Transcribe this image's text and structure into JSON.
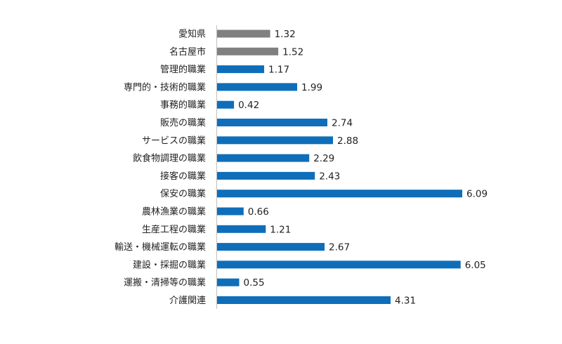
{
  "chart_data": {
    "type": "bar",
    "orientation": "horizontal",
    "title": "",
    "xlabel": "",
    "ylabel": "",
    "grid": false,
    "legend": "none",
    "xlim": [
      0,
      6.2
    ],
    "categories": [
      "愛知県",
      "名古屋市",
      "管理的職業",
      "専門的・技術的職業",
      "事務的職業",
      "販売の職業",
      "サービスの職業",
      "飲食物調理の職業",
      "接客の職業",
      "保安の職業",
      "農林漁業の職業",
      "生産工程の職業",
      "輸送・機械運転の職業",
      "建設・採掘の職業",
      "運搬・清掃等の職業",
      "介護関連"
    ],
    "values": [
      1.32,
      1.52,
      1.17,
      1.99,
      0.42,
      2.74,
      2.88,
      2.29,
      2.43,
      6.09,
      0.66,
      1.21,
      2.67,
      6.05,
      0.55,
      4.31
    ],
    "value_labels": [
      "1.32",
      "1.52",
      "1.17",
      "1.99",
      "0.42",
      "2.74",
      "2.88",
      "2.29",
      "2.43",
      "6.09",
      "0.66",
      "1.21",
      "2.67",
      "6.05",
      "0.55",
      "4.31"
    ],
    "colors": [
      "#808080",
      "#808080",
      "#0F6EB9",
      "#0F6EB9",
      "#0F6EB9",
      "#0F6EB9",
      "#0F6EB9",
      "#0F6EB9",
      "#0F6EB9",
      "#0F6EB9",
      "#0F6EB9",
      "#0F6EB9",
      "#0F6EB9",
      "#0F6EB9",
      "#0F6EB9",
      "#0F6EB9"
    ],
    "axis_color": "#BFBFBF"
  }
}
